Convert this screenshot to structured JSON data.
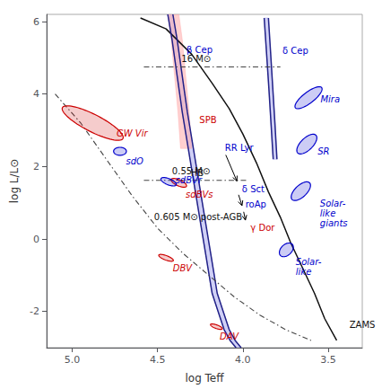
{
  "chart_data": {
    "type": "line",
    "xlabel": "log Teff",
    "ylabel": "log L/L⊙",
    "xlim": [
      5.15,
      3.3
    ],
    "ylim": [
      -3.0,
      6.2
    ],
    "xticks": [
      {
        "value": 5.0,
        "label": "5.0"
      },
      4.5,
      {
        "value": 4.0,
        "label": "4.0"
      },
      3.5
    ],
    "yticks": [
      -2,
      0,
      2,
      4,
      6
    ],
    "grid": false,
    "series": [
      {
        "type": "polygon",
        "color": "#aaaaee",
        "x": [
          4.44,
          4.415,
          4.385,
          4.355,
          4.32,
          4.285,
          4.25,
          4.215,
          4.18,
          4.145,
          4.11,
          4.075,
          4.04,
          4.01,
          4.045,
          4.08,
          4.115,
          4.15,
          4.185,
          4.22,
          4.255,
          4.29,
          4.325,
          4.355,
          4.385,
          4.41
        ],
        "y": [
          6.2,
          5.5,
          4.5,
          3.5,
          2.5,
          1.5,
          0.5,
          -0.5,
          -1.5,
          -2.0,
          -2.5,
          -2.8,
          -3.0,
          -3.0,
          -2.8,
          -2.5,
          -2.0,
          -1.5,
          -0.5,
          0.5,
          1.5,
          2.5,
          3.5,
          4.5,
          5.5,
          6.2
        ]
      },
      {
        "type": "polygon",
        "color": "#aaaaee",
        "x": [
          3.875,
          3.862,
          3.848,
          3.835,
          3.822,
          3.8,
          3.812,
          3.825,
          3.838,
          3.85
        ],
        "y": [
          6.1,
          5.2,
          4.2,
          3.2,
          2.2,
          2.2,
          3.2,
          4.2,
          5.2,
          6.1
        ]
      },
      {
        "type": "polygon",
        "color": "#ffaaaa",
        "x": [
          4.44,
          4.42,
          4.4,
          4.38,
          4.365,
          4.3,
          4.315,
          4.335,
          4.355,
          4.375
        ],
        "y": [
          6.2,
          5.5,
          4.5,
          3.5,
          2.5,
          2.5,
          3.5,
          4.5,
          5.5,
          6.2
        ]
      },
      {
        "type": "line",
        "color": "#111111",
        "line_style": "solid",
        "x": [
          3.45,
          3.52,
          3.58,
          3.65,
          3.72,
          3.78,
          3.85,
          3.92,
          4.0,
          4.08,
          4.18,
          4.3,
          4.45,
          4.6
        ],
        "y": [
          -2.8,
          -2.2,
          -1.5,
          -0.8,
          -0.1,
          0.6,
          1.3,
          2.1,
          2.9,
          3.6,
          4.3,
          5.1,
          5.8,
          6.1
        ]
      },
      {
        "type": "line",
        "color": "#222288",
        "line_style": "solid",
        "x": [
          4.44,
          4.415,
          4.385,
          4.355,
          4.32,
          4.285,
          4.25,
          4.215,
          4.18,
          4.145,
          4.11,
          4.075,
          4.04
        ],
        "y": [
          6.2,
          5.5,
          4.5,
          3.5,
          2.5,
          1.5,
          0.5,
          -0.5,
          -1.5,
          -2.0,
          -2.5,
          -2.8,
          -3.0
        ]
      },
      {
        "type": "line",
        "color": "#222288",
        "line_style": "solid",
        "x": [
          4.41,
          4.385,
          4.355,
          4.325,
          4.29,
          4.255,
          4.22,
          4.185,
          4.15,
          4.115,
          4.08,
          4.045,
          4.01
        ],
        "y": [
          6.2,
          5.5,
          4.5,
          3.5,
          2.5,
          1.5,
          0.5,
          -0.5,
          -1.5,
          -2.0,
          -2.5,
          -2.8,
          -3.0
        ]
      },
      {
        "type": "line",
        "color": "#222288",
        "line_style": "solid",
        "x": [
          3.875,
          3.862,
          3.848,
          3.835,
          3.822
        ],
        "y": [
          6.1,
          5.2,
          4.2,
          3.2,
          2.2
        ]
      },
      {
        "type": "line",
        "color": "#222288",
        "line_style": "solid",
        "x": [
          3.85,
          3.838,
          3.825,
          3.812,
          3.8
        ],
        "y": [
          6.1,
          5.2,
          4.2,
          3.2,
          2.2
        ]
      },
      {
        "type": "line",
        "color": "#444444",
        "line_style": "dashdot",
        "x": [
          5.1,
          4.95,
          4.8,
          4.65,
          4.5,
          4.35,
          4.2,
          4.05,
          3.9,
          3.75,
          3.6
        ],
        "y": [
          4.0,
          3.2,
          2.2,
          1.2,
          0.3,
          -0.4,
          -1.0,
          -1.6,
          -2.1,
          -2.5,
          -2.8
        ]
      },
      {
        "type": "line",
        "color": "#444444",
        "line_style": "dashdot",
        "x": [
          4.58,
          4.48,
          4.38,
          4.28,
          4.18,
          4.08,
          3.98,
          3.88,
          3.78
        ],
        "y": [
          4.75,
          4.75,
          4.75,
          4.75,
          4.75,
          4.75,
          4.75,
          4.75,
          4.75
        ]
      },
      {
        "type": "line",
        "color": "#444444",
        "line_style": "dashdot",
        "x": [
          4.58,
          4.48,
          4.38,
          4.28,
          4.18,
          4.08,
          3.98
        ],
        "y": [
          1.62,
          1.62,
          1.62,
          1.62,
          1.62,
          1.62,
          1.62
        ]
      },
      {
        "type": "ellipse",
        "color": "#cc0000",
        "cx": 4.88,
        "cy": 3.2,
        "w": 0.19,
        "h": 1.0,
        "angle": -18,
        "label": "GW Vir",
        "lx": 4.74,
        "ly": 3.05
      },
      {
        "type": "ellipse",
        "color": "#cc0000",
        "cx": 4.375,
        "cy": 1.55,
        "w": 0.065,
        "h": 0.25,
        "angle": -15,
        "label": "sdBVs",
        "lx": 4.335,
        "ly": 1.36
      },
      {
        "type": "ellipse",
        "color": "#cc0000",
        "cx": 4.45,
        "cy": -0.52,
        "w": 0.055,
        "h": 0.2,
        "angle": -20,
        "label": "DBV",
        "lx": 4.41,
        "ly": -0.68
      },
      {
        "type": "ellipse",
        "color": "#cc0000",
        "cx": 4.155,
        "cy": -2.42,
        "w": 0.045,
        "h": 0.16,
        "angle": -20,
        "label": "DAV",
        "lx": 4.135,
        "ly": -2.56
      },
      {
        "type": "ellipse",
        "color": "#0000cc",
        "cx": 4.72,
        "cy": 2.42,
        "w": 0.075,
        "h": 0.22,
        "angle": 0,
        "label": "sdO",
        "lx": 4.685,
        "ly": 2.28
      },
      {
        "type": "ellipse",
        "color": "#0000cc",
        "cx": 4.435,
        "cy": 1.58,
        "w": 0.068,
        "h": 0.24,
        "angle": -15,
        "label": "sdBVr",
        "lx": 4.395,
        "ly": 1.76
      },
      {
        "type": "ellipse",
        "color": "#0000cc",
        "cx": 3.615,
        "cy": 3.9,
        "w": 0.095,
        "h": 0.62,
        "angle": 12,
        "label": "Mira",
        "lx": 3.545,
        "ly": 4.0
      },
      {
        "type": "ellipse",
        "color": "#0000cc",
        "cx": 3.625,
        "cy": 2.62,
        "w": 0.09,
        "h": 0.55,
        "angle": 8,
        "label": "SR",
        "lx": 3.562,
        "ly": 2.55
      },
      {
        "type": "ellipse",
        "color": "#0000cc",
        "cx": 3.66,
        "cy": 1.32,
        "w": 0.088,
        "h": 0.52,
        "angle": 8,
        "label": "Solar-\nlike\ngiants",
        "lx": 3.548,
        "ly": 1.12
      },
      {
        "type": "ellipse",
        "color": "#0000cc",
        "cx": 3.745,
        "cy": -0.3,
        "w": 0.075,
        "h": 0.38,
        "angle": 5,
        "label": "Solar-\nlike",
        "lx": 3.69,
        "ly": -0.5
      },
      {
        "type": "arrow",
        "color": "#000000",
        "x": [
          4.1,
          4.035
        ],
        "y": [
          2.32,
          1.6
        ]
      },
      {
        "type": "arrow",
        "color": "#000000",
        "x": [
          4.025,
          4.005
        ],
        "y": [
          1.22,
          0.92
        ]
      },
      {
        "type": "arrow",
        "color": "#000000",
        "x": [
          3.995,
          3.985
        ],
        "y": [
          0.75,
          0.52
        ]
      }
    ],
    "annotations": [
      {
        "text": "ZAMS",
        "x": 3.375,
        "y": -2.5,
        "color": "#111111"
      },
      {
        "text": "β Cep",
        "x": 4.33,
        "y": 5.08,
        "color": "#0000cc"
      },
      {
        "text": "SPB",
        "x": 4.255,
        "y": 3.15,
        "color": "#cc0000"
      },
      {
        "text": "RR Lyr",
        "x": 4.105,
        "y": 2.38,
        "color": "#0000cc"
      },
      {
        "text": "δ Sct",
        "x": 4.005,
        "y": 1.25,
        "color": "#0000cc"
      },
      {
        "text": "roAp",
        "x": 3.985,
        "y": 0.82,
        "color": "#0000cc"
      },
      {
        "text": "γ Dor",
        "x": 3.955,
        "y": 0.18,
        "color": "#cc0000"
      },
      {
        "text": "δ Cep",
        "x": 3.768,
        "y": 5.05,
        "color": "#0000cc"
      },
      {
        "text": "16 M⊙",
        "x": 4.36,
        "y": 4.83,
        "color": "#111111"
      },
      {
        "text": "0.55 M⊙",
        "x": 4.415,
        "y": 1.74,
        "color": "#111111"
      },
      {
        "text": "HB",
        "x": 4.305,
        "y": 1.68,
        "color": "#111111"
      },
      {
        "text": "0.605 M⊙ post-AGB",
        "x": 4.52,
        "y": 0.48,
        "color": "#111111"
      }
    ]
  }
}
